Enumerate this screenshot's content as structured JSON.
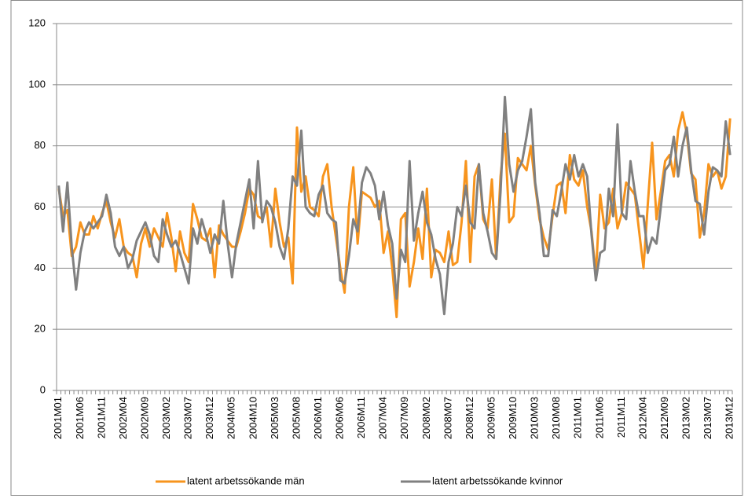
{
  "chart_data": {
    "type": "line",
    "categories": [
      "2001M01",
      null,
      null,
      null,
      null,
      "2001M06",
      null,
      null,
      null,
      null,
      "2001M11",
      null,
      null,
      null,
      null,
      "2002M04",
      null,
      null,
      null,
      null,
      "2002M09",
      null,
      null,
      null,
      null,
      "2003M02",
      null,
      null,
      null,
      null,
      "2003M07",
      null,
      null,
      null,
      null,
      "2003M12",
      null,
      null,
      null,
      null,
      "2004M05",
      null,
      null,
      null,
      null,
      "2004M10",
      null,
      null,
      null,
      null,
      "2005M03",
      null,
      null,
      null,
      null,
      "2005M08",
      null,
      null,
      null,
      null,
      "2006M01",
      null,
      null,
      null,
      null,
      "2006M06",
      null,
      null,
      null,
      null,
      "2006M11",
      null,
      null,
      null,
      null,
      "2007M04",
      null,
      null,
      null,
      null,
      "2007M09",
      null,
      null,
      null,
      null,
      "2008M02",
      null,
      null,
      null,
      null,
      "2008M07",
      null,
      null,
      null,
      null,
      "2008M12",
      null,
      null,
      null,
      null,
      "2009M05",
      null,
      null,
      null,
      null,
      "2009M10",
      null,
      null,
      null,
      null,
      "2010M03",
      null,
      null,
      null,
      null,
      "2010M08",
      null,
      null,
      null,
      null,
      "2011M01",
      null,
      null,
      null,
      null,
      "2011M06",
      null,
      null,
      null,
      null,
      "2011M11",
      null,
      null,
      null,
      null,
      "2012M04",
      null,
      null,
      null,
      null,
      "2012M09",
      null,
      null,
      null,
      null,
      "2013M02",
      null,
      null,
      null,
      null,
      "2013M07",
      null,
      null,
      null,
      null,
      "2013M12"
    ],
    "series": [
      {
        "name": "latent arbetssökande män",
        "color": "#f7941d",
        "values": [
          66,
          57,
          59,
          44,
          47,
          55,
          51,
          51,
          57,
          53,
          58,
          62,
          55,
          50,
          56,
          47,
          45,
          44,
          37,
          48,
          53,
          47,
          53,
          50,
          47,
          58,
          50,
          39,
          52,
          45,
          42,
          61,
          56,
          50,
          49,
          53,
          37,
          54,
          51,
          49,
          47,
          47,
          52,
          58,
          66,
          64,
          57,
          56,
          60,
          47,
          66,
          55,
          47,
          50,
          35,
          86,
          65,
          70,
          60,
          59,
          57,
          70,
          74,
          60,
          50,
          40,
          32,
          60,
          73,
          48,
          65,
          64,
          63,
          60,
          62,
          45,
          52,
          40,
          24,
          56,
          58,
          34,
          42,
          53,
          43,
          66,
          37,
          46,
          45,
          42,
          52,
          41,
          42,
          55,
          75,
          42,
          70,
          74,
          56,
          53,
          69,
          43,
          70,
          84,
          55,
          57,
          76,
          74,
          72,
          80,
          67,
          56,
          50,
          46,
          57,
          67,
          68,
          58,
          77,
          69,
          67,
          72,
          60,
          52,
          38,
          64,
          53,
          55,
          66,
          53,
          58,
          68,
          66,
          64,
          52,
          40,
          61,
          81,
          56,
          65,
          75,
          77,
          70,
          85,
          91,
          84,
          71,
          69,
          50,
          58,
          74,
          70,
          72,
          66,
          70,
          89
        ]
      },
      {
        "name": "latent arbetssökande kvinnor",
        "color": "#808080",
        "values": [
          67,
          52,
          68,
          47,
          33,
          45,
          52,
          55,
          53,
          55,
          57,
          64,
          58,
          47,
          44,
          47,
          40,
          43,
          49,
          52,
          55,
          51,
          44,
          42,
          56,
          51,
          47,
          49,
          45,
          40,
          35,
          53,
          48,
          56,
          51,
          45,
          51,
          48,
          62,
          48,
          37,
          48,
          55,
          62,
          69,
          53,
          75,
          55,
          62,
          60,
          55,
          47,
          43,
          53,
          70,
          67,
          85,
          60,
          58,
          57,
          64,
          67,
          58,
          56,
          55,
          36,
          35,
          44,
          56,
          52,
          68,
          73,
          71,
          67,
          56,
          65,
          54,
          48,
          30,
          46,
          42,
          75,
          49,
          58,
          65,
          55,
          51,
          43,
          38,
          25,
          42,
          48,
          60,
          57,
          67,
          55,
          53,
          74,
          58,
          52,
          45,
          43,
          65,
          96,
          74,
          65,
          72,
          75,
          83,
          92,
          68,
          58,
          44,
          44,
          59,
          57,
          65,
          74,
          69,
          77,
          70,
          74,
          70,
          51,
          36,
          45,
          46,
          66,
          57,
          87,
          58,
          56,
          75,
          65,
          57,
          57,
          45,
          50,
          48,
          60,
          72,
          74,
          83,
          70,
          80,
          86,
          72,
          62,
          61,
          51,
          65,
          73,
          72,
          70,
          88,
          77
        ]
      }
    ],
    "ylim": [
      0,
      120
    ],
    "yticks": [
      0,
      20,
      40,
      60,
      80,
      100,
      120
    ],
    "grid": true,
    "legend": "bottom"
  }
}
